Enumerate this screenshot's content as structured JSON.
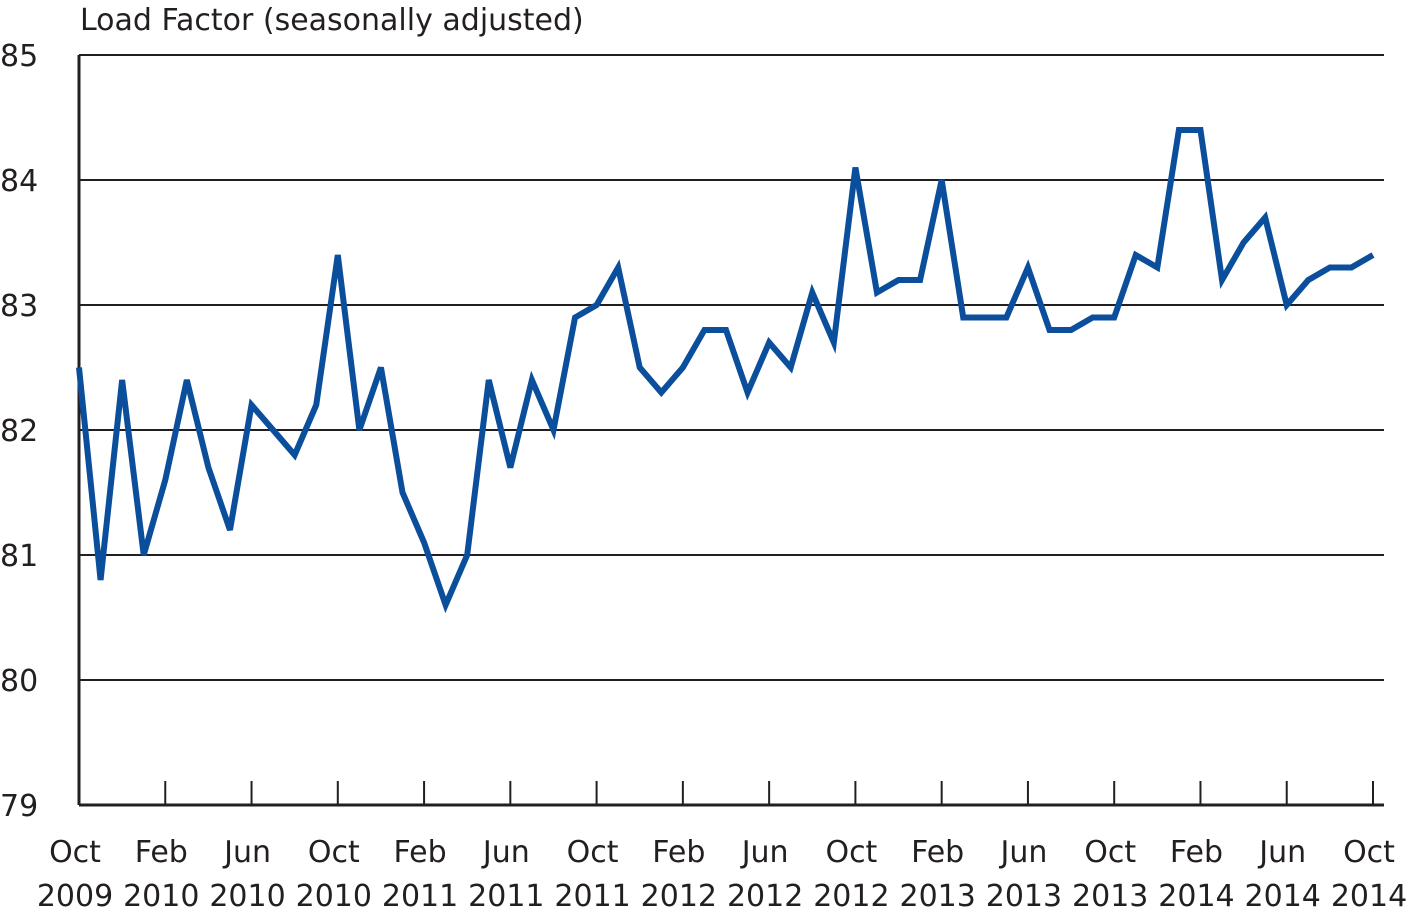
{
  "chart_data": {
    "type": "line",
    "title": "",
    "ylabel": "Load Factor (seasonally adjusted)",
    "xlabel": "",
    "ylim": [
      79,
      85
    ],
    "yticks": [
      79,
      80,
      81,
      82,
      83,
      84,
      85
    ],
    "grid": true,
    "line_color": "#0b4f9c",
    "x_tick_labels": [
      {
        "month": "Oct",
        "year": "2009"
      },
      {
        "month": "Feb",
        "year": "2010"
      },
      {
        "month": "Jun",
        "year": "2010"
      },
      {
        "month": "Oct",
        "year": "2010"
      },
      {
        "month": "Feb",
        "year": "2011"
      },
      {
        "month": "Jun",
        "year": "2011"
      },
      {
        "month": "Oct",
        "year": "2011"
      },
      {
        "month": "Feb",
        "year": "2012"
      },
      {
        "month": "Jun",
        "year": "2012"
      },
      {
        "month": "Oct",
        "year": "2012"
      },
      {
        "month": "Feb",
        "year": "2013"
      },
      {
        "month": "Jun",
        "year": "2013"
      },
      {
        "month": "Oct",
        "year": "2013"
      },
      {
        "month": "Feb",
        "year": "2014"
      },
      {
        "month": "Jun",
        "year": "2014"
      },
      {
        "month": "Oct",
        "year": "2014"
      }
    ],
    "x": [
      "2009-10",
      "2009-11",
      "2009-12",
      "2010-01",
      "2010-02",
      "2010-03",
      "2010-04",
      "2010-05",
      "2010-06",
      "2010-07",
      "2010-08",
      "2010-09",
      "2010-10",
      "2010-11",
      "2010-12",
      "2011-01",
      "2011-02",
      "2011-03",
      "2011-04",
      "2011-05",
      "2011-06",
      "2011-07",
      "2011-08",
      "2011-09",
      "2011-10",
      "2011-11",
      "2011-12",
      "2012-01",
      "2012-02",
      "2012-03",
      "2012-04",
      "2012-05",
      "2012-06",
      "2012-07",
      "2012-08",
      "2012-09",
      "2012-10",
      "2012-11",
      "2012-12",
      "2013-01",
      "2013-02",
      "2013-03",
      "2013-04",
      "2013-05",
      "2013-06",
      "2013-07",
      "2013-08",
      "2013-09",
      "2013-10",
      "2013-11",
      "2013-12",
      "2014-01",
      "2014-02",
      "2014-03",
      "2014-04",
      "2014-05",
      "2014-06",
      "2014-07",
      "2014-08",
      "2014-09",
      "2014-10"
    ],
    "series": [
      {
        "values": [
          82.5,
          80.8,
          82.4,
          81.0,
          81.6,
          82.4,
          81.7,
          81.2,
          82.2,
          82.0,
          81.8,
          82.2,
          83.4,
          82.0,
          82.5,
          81.5,
          81.1,
          80.6,
          81.0,
          82.4,
          81.7,
          82.4,
          82.0,
          82.9,
          83.0,
          83.3,
          82.5,
          82.3,
          82.5,
          82.8,
          82.8,
          82.3,
          82.7,
          82.5,
          83.1,
          82.7,
          84.1,
          83.1,
          83.2,
          83.2,
          84.0,
          82.9,
          82.9,
          82.9,
          83.3,
          82.8,
          82.8,
          82.9,
          82.9,
          83.4,
          83.3,
          84.4,
          84.4,
          83.2,
          83.5,
          83.7,
          83.0,
          83.2,
          83.3,
          83.3,
          83.4
        ]
      }
    ]
  }
}
